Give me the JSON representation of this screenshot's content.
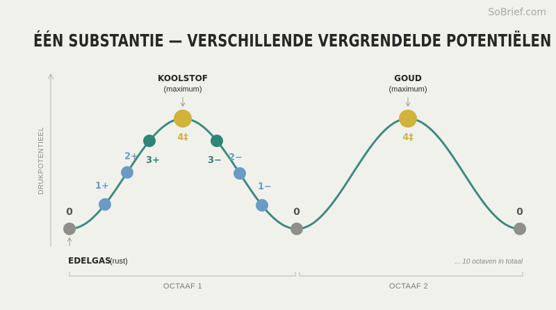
{
  "watermark": "SoBrief.com",
  "title": "ÉÉN SUBSTANTIE — VERSCHILLENDE VERGRENDELDE POTENTIËLEN",
  "y_axis_label": "DRUKPOTENTIEEL",
  "annotations": {
    "carbon_name": "KOOLSTOF",
    "carbon_sub": "(maximum)",
    "gold_name": "GOUD",
    "gold_sub": "(maximum)",
    "noble_name": "EDELGAS",
    "noble_sub": "(rust)",
    "octaves_note": "... 10 octaven in totaal"
  },
  "octaves": [
    "OCTAAF 1",
    "OCTAAF 2"
  ],
  "points": [
    {
      "id": "zero-start",
      "label": "0",
      "kind": "zero"
    },
    {
      "id": "1plus",
      "label": "1+",
      "kind": "blue"
    },
    {
      "id": "2plus",
      "label": "2+",
      "kind": "blue"
    },
    {
      "id": "3plus",
      "label": "3+",
      "kind": "teal"
    },
    {
      "id": "4-carbon",
      "label": "4‡",
      "kind": "gold"
    },
    {
      "id": "3minus",
      "label": "3−",
      "kind": "teal"
    },
    {
      "id": "2minus",
      "label": "2−",
      "kind": "blue"
    },
    {
      "id": "1minus",
      "label": "1−",
      "kind": "blue"
    },
    {
      "id": "zero-mid",
      "label": "0",
      "kind": "zero"
    },
    {
      "id": "4-gold",
      "label": "4‡",
      "kind": "gold"
    },
    {
      "id": "zero-end",
      "label": "0",
      "kind": "zero"
    }
  ],
  "colors": {
    "curve": "#3d8a7e",
    "blue": "#6b9bc4",
    "teal": "#2f8577",
    "gold": "#d1b23c",
    "zero": "#8e8e8a",
    "text": "#262626",
    "muted": "#8a8a84"
  }
}
